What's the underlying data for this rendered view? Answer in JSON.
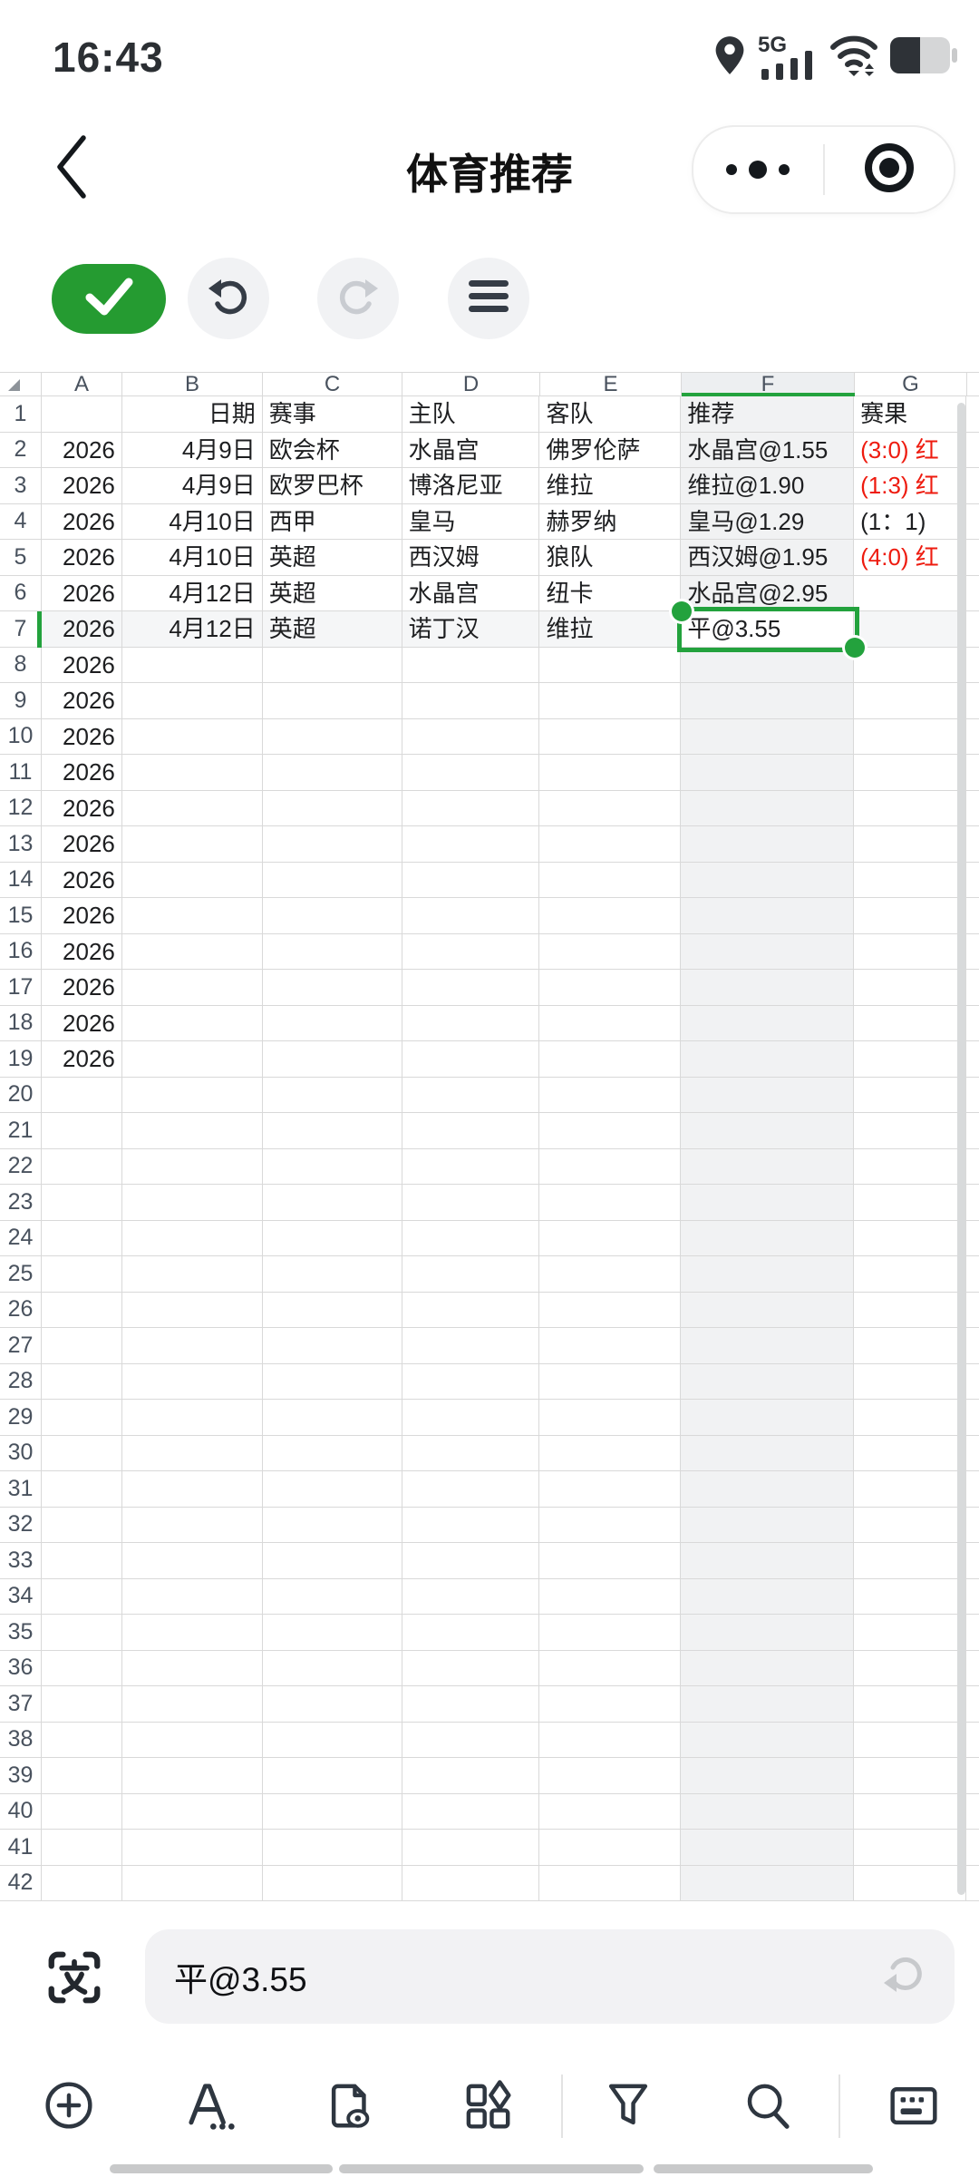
{
  "status_bar": {
    "time": "16:43",
    "network_label": "5G",
    "icons": [
      "location-icon",
      "signal-bars-icon",
      "wifi-icon",
      "battery-half-icon"
    ],
    "battery_level": 0.5
  },
  "nav_bar": {
    "title": "体育推荐",
    "back_icon": "chevron-left-icon",
    "capsule_icons": [
      "more-dots-icon",
      "target-icon"
    ]
  },
  "edit_toolbar": {
    "buttons": [
      "confirm",
      "undo",
      "redo",
      "menu"
    ],
    "redo_disabled": true
  },
  "sheet": {
    "column_letters": [
      "A",
      "B",
      "C",
      "D",
      "E",
      "F",
      "G"
    ],
    "active_cell": "F7",
    "active_column": "F",
    "active_row": 7,
    "visible_rows": 42,
    "data_rows": [
      {
        "n": 1,
        "cells": [
          "",
          "日期",
          "赛事",
          "主队",
          "客队",
          "推荐",
          "赛果"
        ],
        "red": false
      },
      {
        "n": 2,
        "cells": [
          "2026",
          "4月9日",
          "欧会杯",
          "水晶宫",
          "佛罗伦萨",
          "水晶宫@1.55",
          "(3:0) 红"
        ],
        "red": true
      },
      {
        "n": 3,
        "cells": [
          "2026",
          "4月9日",
          "欧罗巴杯",
          "博洛尼亚",
          "维拉",
          "维拉@1.90",
          "(1:3) 红"
        ],
        "red": true
      },
      {
        "n": 4,
        "cells": [
          "2026",
          "4月10日",
          "西甲",
          "皇马",
          "赫罗纳",
          "皇马@1.29",
          "(1：1)"
        ],
        "red": false
      },
      {
        "n": 5,
        "cells": [
          "2026",
          "4月10日",
          "英超",
          "西汉姆",
          "狼队",
          "西汉姆@1.95",
          "(4:0) 红"
        ],
        "red": true
      },
      {
        "n": 6,
        "cells": [
          "2026",
          "4月12日",
          "英超",
          "水晶宫",
          "纽卡",
          "水品宫@2.95",
          ""
        ],
        "red": false
      },
      {
        "n": 7,
        "cells": [
          "2026",
          "4月12日",
          "英超",
          "诺丁汉",
          "维拉",
          "平@3.55",
          ""
        ],
        "red": false
      },
      {
        "n": 8,
        "cells": [
          "2026",
          "",
          "",
          "",
          "",
          "",
          ""
        ],
        "red": false
      },
      {
        "n": 9,
        "cells": [
          "2026",
          "",
          "",
          "",
          "",
          "",
          ""
        ],
        "red": false
      },
      {
        "n": 10,
        "cells": [
          "2026",
          "",
          "",
          "",
          "",
          "",
          ""
        ],
        "red": false
      },
      {
        "n": 11,
        "cells": [
          "2026",
          "",
          "",
          "",
          "",
          "",
          ""
        ],
        "red": false
      },
      {
        "n": 12,
        "cells": [
          "2026",
          "",
          "",
          "",
          "",
          "",
          ""
        ],
        "red": false
      },
      {
        "n": 13,
        "cells": [
          "2026",
          "",
          "",
          "",
          "",
          "",
          ""
        ],
        "red": false
      },
      {
        "n": 14,
        "cells": [
          "2026",
          "",
          "",
          "",
          "",
          "",
          ""
        ],
        "red": false
      },
      {
        "n": 15,
        "cells": [
          "2026",
          "",
          "",
          "",
          "",
          "",
          ""
        ],
        "red": false
      },
      {
        "n": 16,
        "cells": [
          "2026",
          "",
          "",
          "",
          "",
          "",
          ""
        ],
        "red": false
      },
      {
        "n": 17,
        "cells": [
          "2026",
          "",
          "",
          "",
          "",
          "",
          ""
        ],
        "red": false
      },
      {
        "n": 18,
        "cells": [
          "2026",
          "",
          "",
          "",
          "",
          "",
          ""
        ],
        "red": false
      },
      {
        "n": 19,
        "cells": [
          "2026",
          "",
          "",
          "",
          "",
          "",
          ""
        ],
        "red": false
      }
    ]
  },
  "formula_bar": {
    "value": "平@3.55",
    "icons": [
      "scan-text-icon",
      "return-icon"
    ]
  },
  "bottom_toolbar": {
    "buttons": [
      "insert",
      "font-format",
      "view-document",
      "shapes",
      "filter",
      "search",
      "keyboard"
    ]
  },
  "colors": {
    "accent_green": "#23a23d",
    "confirm_green": "#259b31",
    "result_red": "#ee1b0f",
    "grid_line": "#d9d9d9",
    "active_column_tint": "#f1f2f3",
    "active_row_tint": "#f5f6f7"
  }
}
